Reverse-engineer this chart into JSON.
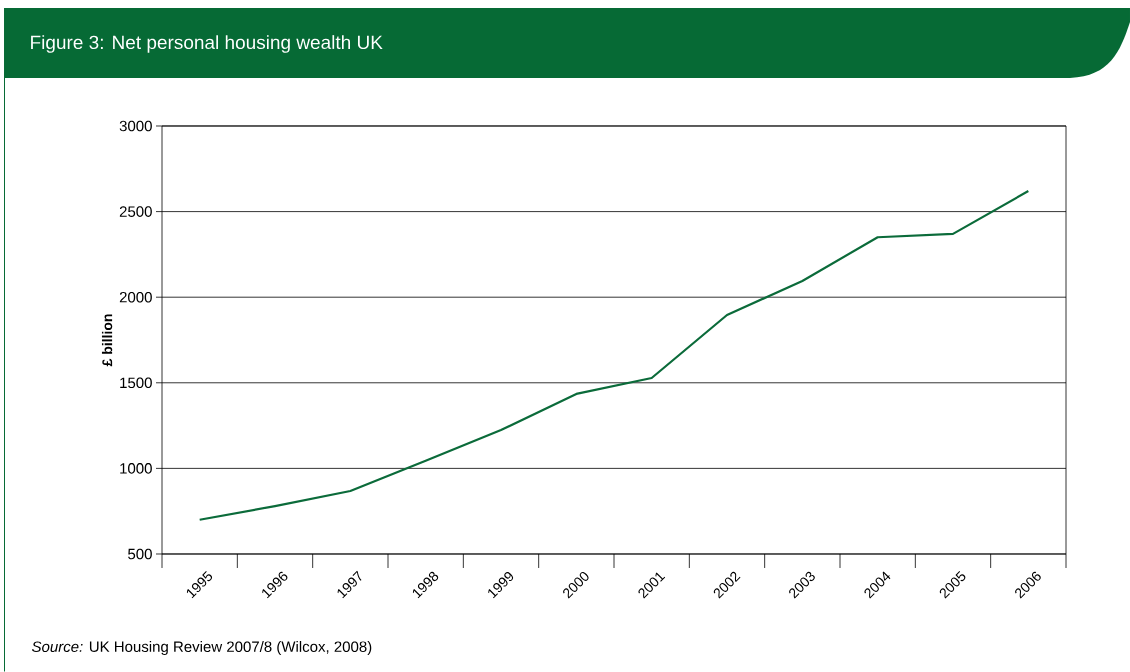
{
  "chart_data": {
    "type": "line",
    "title": "Figure 3: Net personal housing wealth UK",
    "ylabel": "£ billion",
    "categories": [
      "1995",
      "1996",
      "1997",
      "1998",
      "1999",
      "2000",
      "2001",
      "2002",
      "2003",
      "2004",
      "2005",
      "2006"
    ],
    "series": [
      {
        "color": "#0b6b3a",
        "values": [
          700,
          780,
          868,
          1045,
          1224,
          1435,
          1528,
          1896,
          2095,
          2350,
          2370,
          2620
        ]
      }
    ],
    "ylim": [
      500,
      3000
    ],
    "yticks": [
      500,
      1000,
      1500,
      2000,
      2500,
      3000
    ],
    "grid": "y",
    "annotations": [
      "*Source:* UK Housing Review 2007/8 (Wilcox, 2008)"
    ]
  }
}
